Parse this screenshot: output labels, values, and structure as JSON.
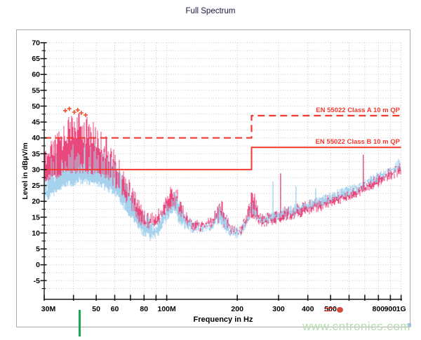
{
  "page": {
    "title": "Full Spectrum",
    "watermark": "www.cntronics.com"
  },
  "colors": {
    "limit_red": "#f4392e",
    "trace_pink": "#e9487d",
    "trace_blue": "#a6d2ed",
    "marker_orange": "#f0512e",
    "grid": "#c6c6c6",
    "axis": "#1a1a1a",
    "text": "#000000",
    "title_text": "#15153c",
    "watermark_green": "#b5dcae",
    "border": "#ababab",
    "marker_line_green": "#18a653",
    "annotation_red": "#cf3a30"
  },
  "chart_data": {
    "type": "area",
    "title": "Full Spectrum",
    "xlabel": "Frequency in Hz",
    "ylabel": "Level in dBµV/m",
    "x_scale": "log",
    "x_range": [
      "30M",
      "1G"
    ],
    "ylim": [
      -10,
      70
    ],
    "grid": "dotted",
    "y_major_ticks": [
      70,
      65,
      60,
      55,
      50,
      45,
      40,
      35,
      30,
      25,
      20,
      15,
      10,
      5,
      0,
      -5
    ],
    "y_minor_step": 2.5,
    "x_ticks": [
      {
        "f_mhz": 30,
        "label": "30M"
      },
      {
        "f_mhz": 40
      },
      {
        "f_mhz": 50,
        "label": "50"
      },
      {
        "f_mhz": 60,
        "label": "60"
      },
      {
        "f_mhz": 70
      },
      {
        "f_mhz": 80,
        "label": "80"
      },
      {
        "f_mhz": 90
      },
      {
        "f_mhz": 100,
        "label": "100M"
      },
      {
        "f_mhz": 200,
        "label": "200"
      },
      {
        "f_mhz": 300,
        "label": "300"
      },
      {
        "f_mhz": 400,
        "label": "400"
      },
      {
        "f_mhz": 500,
        "label": "500"
      },
      {
        "f_mhz": 600
      },
      {
        "f_mhz": 700
      },
      {
        "f_mhz": 800,
        "label": "800"
      },
      {
        "f_mhz": 900,
        "label": "900"
      },
      {
        "f_mhz": 1000,
        "label": "1G"
      }
    ],
    "limit_lines": [
      {
        "label": "EN 55022 Class A 10 m QP",
        "style": "dashed",
        "segments_mhz_db": [
          [
            30,
            40
          ],
          [
            230,
            40
          ],
          [
            230,
            47
          ],
          [
            1000,
            47
          ]
        ]
      },
      {
        "label": "EN 55022 Class B 10 m QP",
        "style": "solid",
        "segments_mhz_db": [
          [
            30,
            30
          ],
          [
            230,
            30
          ],
          [
            230,
            37
          ],
          [
            1000,
            37
          ]
        ]
      }
    ],
    "series": [
      {
        "name": "quasi-peak trace",
        "color": "#e9487d",
        "envelope_top_mhz_db": [
          [
            30,
            36
          ],
          [
            34,
            42
          ],
          [
            38,
            47
          ],
          [
            41,
            48.5
          ],
          [
            44,
            47.5
          ],
          [
            47,
            46
          ],
          [
            50,
            44.5
          ],
          [
            54,
            41.5
          ],
          [
            58,
            38.5
          ],
          [
            62,
            34
          ],
          [
            66,
            30
          ],
          [
            70,
            26
          ],
          [
            74,
            23
          ],
          [
            78,
            19.5
          ],
          [
            82,
            17.5
          ],
          [
            87,
            17
          ],
          [
            91,
            17.5
          ],
          [
            95,
            19.5
          ],
          [
            99,
            22.5
          ],
          [
            103,
            24.8
          ],
          [
            106,
            26
          ],
          [
            110,
            25
          ],
          [
            114,
            21.5
          ],
          [
            120,
            17
          ],
          [
            128,
            15
          ],
          [
            136,
            14.5
          ],
          [
            145,
            14.5
          ],
          [
            152,
            15
          ],
          [
            158,
            16.5
          ],
          [
            164,
            20
          ],
          [
            169,
            21
          ],
          [
            175,
            20
          ],
          [
            181,
            16.5
          ],
          [
            188,
            14
          ],
          [
            196,
            13
          ],
          [
            202,
            12.5
          ],
          [
            208,
            13.5
          ],
          [
            214,
            15.5
          ],
          [
            220,
            18
          ],
          [
            226,
            22
          ],
          [
            231,
            24.5
          ],
          [
            237,
            23
          ],
          [
            243,
            19.5
          ],
          [
            251,
            17.5
          ],
          [
            260,
            16.5
          ],
          [
            272,
            16.5
          ],
          [
            286,
            17
          ],
          [
            300,
            17.8
          ],
          [
            320,
            18.5
          ],
          [
            350,
            19.2
          ],
          [
            380,
            19.8
          ],
          [
            420,
            20.8
          ],
          [
            460,
            21.5
          ],
          [
            500,
            22.3
          ],
          [
            550,
            23.3
          ],
          [
            600,
            24.3
          ],
          [
            660,
            25.4
          ],
          [
            720,
            26.8
          ],
          [
            780,
            28.3
          ],
          [
            850,
            29.8
          ],
          [
            920,
            31
          ],
          [
            1000,
            32.3
          ]
        ],
        "envelope_bottom_mhz_db": [
          [
            30,
            27
          ],
          [
            36,
            29
          ],
          [
            42,
            30
          ],
          [
            48,
            29.5
          ],
          [
            54,
            28
          ],
          [
            58,
            26.5
          ],
          [
            62,
            24
          ],
          [
            66,
            21
          ],
          [
            70,
            17.5
          ],
          [
            74,
            15
          ],
          [
            78,
            13.5
          ],
          [
            83,
            12.5
          ],
          [
            88,
            12.5
          ],
          [
            93,
            14
          ],
          [
            98,
            16.5
          ],
          [
            103,
            18.5
          ],
          [
            107,
            19.5
          ],
          [
            111,
            17.5
          ],
          [
            115,
            15.5
          ],
          [
            120,
            13.5
          ],
          [
            128,
            12
          ],
          [
            140,
            11.5
          ],
          [
            152,
            12
          ],
          [
            160,
            13.5
          ],
          [
            168,
            14.5
          ],
          [
            176,
            12.5
          ],
          [
            186,
            11
          ],
          [
            196,
            10
          ],
          [
            204,
            10
          ],
          [
            212,
            11
          ],
          [
            220,
            13
          ],
          [
            228,
            16
          ],
          [
            234,
            15
          ],
          [
            244,
            13.5
          ],
          [
            260,
            13
          ],
          [
            280,
            13.5
          ],
          [
            305,
            14.2
          ],
          [
            340,
            15.2
          ],
          [
            380,
            16.2
          ],
          [
            430,
            17.4
          ],
          [
            480,
            18.5
          ],
          [
            540,
            19.8
          ],
          [
            620,
            21.5
          ],
          [
            700,
            23.2
          ],
          [
            780,
            25
          ],
          [
            860,
            26.8
          ],
          [
            940,
            28.4
          ],
          [
            1000,
            29.5
          ]
        ]
      },
      {
        "name": "average trace",
        "color": "#a6d2ed",
        "envelope_top_mhz_db": [
          [
            30,
            31
          ],
          [
            34,
            36
          ],
          [
            38,
            39
          ],
          [
            42,
            40.5
          ],
          [
            46,
            39.5
          ],
          [
            50,
            38
          ],
          [
            54,
            36.5
          ],
          [
            58,
            34.5
          ],
          [
            62,
            31.5
          ],
          [
            66,
            28
          ],
          [
            70,
            24.5
          ],
          [
            74,
            21
          ],
          [
            78,
            18
          ],
          [
            82,
            16
          ],
          [
            87,
            15
          ],
          [
            92,
            16
          ],
          [
            97,
            19
          ],
          [
            101,
            21.5
          ],
          [
            105,
            23.5
          ],
          [
            108,
            24
          ],
          [
            112,
            21.5
          ],
          [
            116,
            18.5
          ],
          [
            122,
            15.5
          ],
          [
            130,
            14
          ],
          [
            140,
            13.5
          ],
          [
            150,
            13.8
          ],
          [
            157,
            15
          ],
          [
            164,
            18.5
          ],
          [
            170,
            19.5
          ],
          [
            176,
            17
          ],
          [
            184,
            14
          ],
          [
            194,
            12.5
          ],
          [
            200,
            12
          ],
          [
            206,
            12.8
          ],
          [
            212,
            14
          ],
          [
            218,
            16
          ],
          [
            224,
            18.5
          ],
          [
            230,
            21.5
          ],
          [
            236,
            20
          ],
          [
            244,
            17.5
          ],
          [
            254,
            16.5
          ],
          [
            268,
            16.5
          ],
          [
            284,
            17
          ],
          [
            300,
            17.8
          ],
          [
            320,
            18.5
          ],
          [
            350,
            19.3
          ],
          [
            380,
            20.2
          ],
          [
            420,
            21.2
          ],
          [
            460,
            22
          ],
          [
            500,
            23
          ],
          [
            550,
            24.2
          ],
          [
            600,
            25.3
          ],
          [
            660,
            26.5
          ],
          [
            720,
            27.8
          ],
          [
            780,
            29
          ],
          [
            850,
            30.3
          ],
          [
            920,
            31.6
          ],
          [
            975,
            33.5
          ],
          [
            1000,
            32.8
          ]
        ],
        "envelope_bottom_mhz_db": [
          [
            30,
            20.5
          ],
          [
            35,
            24
          ],
          [
            42,
            26.5
          ],
          [
            48,
            26
          ],
          [
            54,
            24.5
          ],
          [
            60,
            22.5
          ],
          [
            65,
            19
          ],
          [
            70,
            15.5
          ],
          [
            75,
            12
          ],
          [
            80,
            9.5
          ],
          [
            86,
            8.5
          ],
          [
            92,
            10
          ],
          [
            98,
            13.5
          ],
          [
            104,
            16.5
          ],
          [
            108,
            17
          ],
          [
            113,
            13.5
          ],
          [
            120,
            12
          ],
          [
            130,
            11
          ],
          [
            142,
            11
          ],
          [
            152,
            11.5
          ],
          [
            160,
            13
          ],
          [
            168,
            14
          ],
          [
            176,
            11.5
          ],
          [
            186,
            10
          ],
          [
            196,
            9.3
          ],
          [
            202,
            9.3
          ],
          [
            208,
            10
          ],
          [
            214,
            11.5
          ],
          [
            220,
            13.5
          ],
          [
            226,
            15
          ],
          [
            232,
            16
          ],
          [
            240,
            14.5
          ],
          [
            252,
            13.5
          ],
          [
            268,
            13.8
          ],
          [
            290,
            14.3
          ],
          [
            315,
            15.2
          ],
          [
            350,
            16.2
          ],
          [
            390,
            17.5
          ],
          [
            440,
            19
          ],
          [
            500,
            20.5
          ],
          [
            570,
            22
          ],
          [
            650,
            23.8
          ],
          [
            740,
            25.8
          ],
          [
            830,
            27.6
          ],
          [
            920,
            29.4
          ],
          [
            1000,
            31
          ]
        ]
      }
    ],
    "comb_depth_mhz_db": [
      [
        30,
        9
      ],
      [
        50,
        9
      ],
      [
        62,
        7
      ],
      [
        72,
        5
      ],
      [
        82,
        4.5
      ],
      [
        95,
        5
      ],
      [
        108,
        5
      ],
      [
        122,
        3.5
      ],
      [
        150,
        3.5
      ],
      [
        170,
        4
      ],
      [
        200,
        3
      ],
      [
        230,
        4.5
      ],
      [
        260,
        2.8
      ],
      [
        300,
        2.4
      ],
      [
        400,
        2.2
      ],
      [
        600,
        2.2
      ],
      [
        1000,
        2.4
      ]
    ],
    "spikes": [
      {
        "series": 0,
        "f_mhz": 306,
        "db": 28.8
      },
      {
        "series": 0,
        "f_mhz": 690,
        "db": 34.7
      },
      {
        "series": 1,
        "f_mhz": 284,
        "db": 26.2
      },
      {
        "series": 1,
        "f_mhz": 356,
        "db": 24.8
      },
      {
        "series": 1,
        "f_mhz": 432,
        "db": 24.1
      },
      {
        "series": 1,
        "f_mhz": 581,
        "db": 24.5
      }
    ],
    "peak_markers": {
      "symbol": "+",
      "color": "#f0512e",
      "points_mhz_db": [
        [
          36.9,
          48.6
        ],
        [
          38.4,
          49.2
        ],
        [
          40.3,
          48.1
        ],
        [
          41.7,
          48.8
        ],
        [
          43.2,
          47.9
        ],
        [
          45.1,
          47.2
        ]
      ]
    }
  }
}
